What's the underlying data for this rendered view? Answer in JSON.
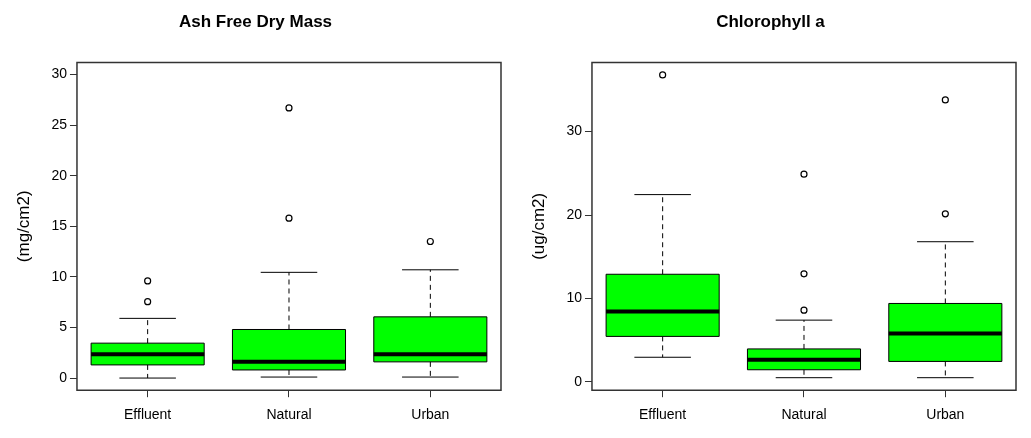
{
  "chart_data": [
    {
      "type": "box",
      "title": "Ash Free Dry Mass",
      "ylabel": "(mg/cm2)",
      "categories": [
        "Effluent",
        "Natural",
        "Urban"
      ],
      "color": "#00ff00",
      "boxes": [
        {
          "low": 0,
          "q1": 1.3,
          "median": 2.35,
          "q3": 3.45,
          "high": 5.9,
          "outliers": [
            7.55,
            9.6
          ]
        },
        {
          "low": 0.1,
          "q1": 0.8,
          "median": 1.6,
          "q3": 4.8,
          "high": 10.45,
          "outliers": [
            15.8,
            26.7
          ]
        },
        {
          "low": 0.1,
          "q1": 1.6,
          "median": 2.35,
          "q3": 6.05,
          "high": 10.7,
          "outliers": [
            13.5
          ]
        }
      ],
      "ylim": [
        -1.2,
        31.2
      ],
      "yticks": [
        0,
        5,
        10,
        15,
        20,
        25,
        30
      ]
    },
    {
      "type": "box",
      "title": "Chlorophyll a",
      "ylabel": "(ug/cm2)",
      "categories": [
        "Effluent",
        "Natural",
        "Urban"
      ],
      "color": "#00ff00",
      "boxes": [
        {
          "low": 2.95,
          "q1": 5.45,
          "median": 8.45,
          "q3": 12.9,
          "high": 22.45,
          "outliers": [
            36.8
          ]
        },
        {
          "low": 0.5,
          "q1": 1.45,
          "median": 2.65,
          "q3": 3.95,
          "high": 7.4,
          "outliers": [
            8.6,
            12.95,
            24.9
          ]
        },
        {
          "low": 0.5,
          "q1": 2.45,
          "median": 5.8,
          "q3": 9.4,
          "high": 16.8,
          "outliers": [
            20.15,
            33.8
          ]
        }
      ],
      "ylim": [
        -1,
        38.3
      ],
      "yticks": [
        0,
        10,
        20,
        30
      ]
    }
  ]
}
